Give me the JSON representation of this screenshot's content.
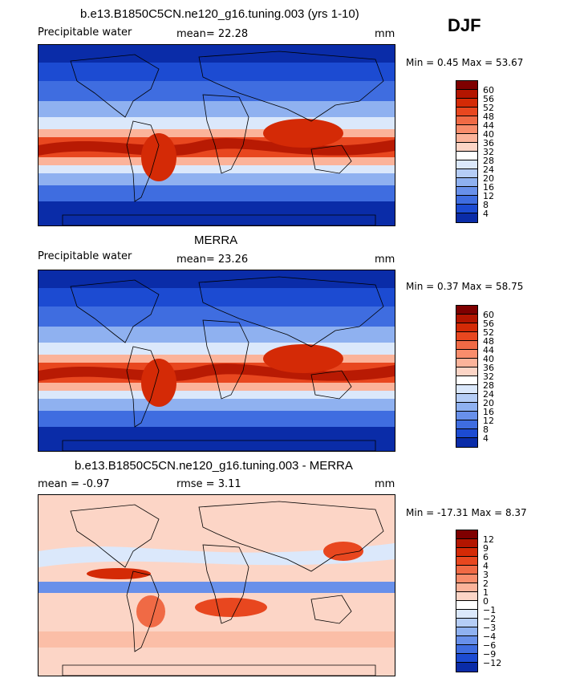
{
  "season": "DJF",
  "panels": [
    {
      "title": "b.e13.B1850C5CN.ne120_g16.tuning.003 (yrs 1-10)",
      "left_text": "Precipitable water",
      "mid_text": "mean=  22.28",
      "units": "mm",
      "minmax": "Min =   0.45  Max =  53.67",
      "field": "absolute"
    },
    {
      "title": "MERRA",
      "left_text": "Precipitable water",
      "mid_text": "mean=  23.26",
      "units": "mm",
      "minmax": "Min =   0.37  Max =  58.75",
      "field": "absolute"
    },
    {
      "title": "b.e13.B1850C5CN.ne120_g16.tuning.003 - MERRA",
      "left_text": "mean =   -0.97",
      "mid_text": "rmse =    3.11",
      "units": "mm",
      "minmax": "Min = -17.31  Max =    8.37",
      "field": "difference"
    }
  ],
  "colorbar_abs": {
    "labels": [
      "60",
      "56",
      "52",
      "48",
      "44",
      "40",
      "36",
      "32",
      "28",
      "24",
      "20",
      "16",
      "12",
      "8",
      "4"
    ],
    "colors": [
      "#7f0000",
      "#b31500",
      "#d42a06",
      "#e8471f",
      "#f06a45",
      "#f88d6c",
      "#fbb39a",
      "#fcd5c6",
      "#ffffff",
      "#dbe8fb",
      "#b5cdf6",
      "#8fb1f0",
      "#6890ea",
      "#3f6de0",
      "#1c4bd2",
      "#0a2ca8"
    ]
  },
  "colorbar_diff": {
    "labels": [
      "12",
      "9",
      "6",
      "4",
      "3",
      "2",
      "1",
      "0",
      "−1",
      "−2",
      "−3",
      "−4",
      "−6",
      "−9",
      "−12"
    ],
    "colors": [
      "#7f0000",
      "#b31500",
      "#d42a06",
      "#e8471f",
      "#f06a45",
      "#f88d6c",
      "#fbb39a",
      "#fcd5c6",
      "#ffffff",
      "#dbe8fb",
      "#b5cdf6",
      "#8fb1f0",
      "#6890ea",
      "#3f6de0",
      "#1c4bd2",
      "#0a2ca8"
    ]
  }
}
